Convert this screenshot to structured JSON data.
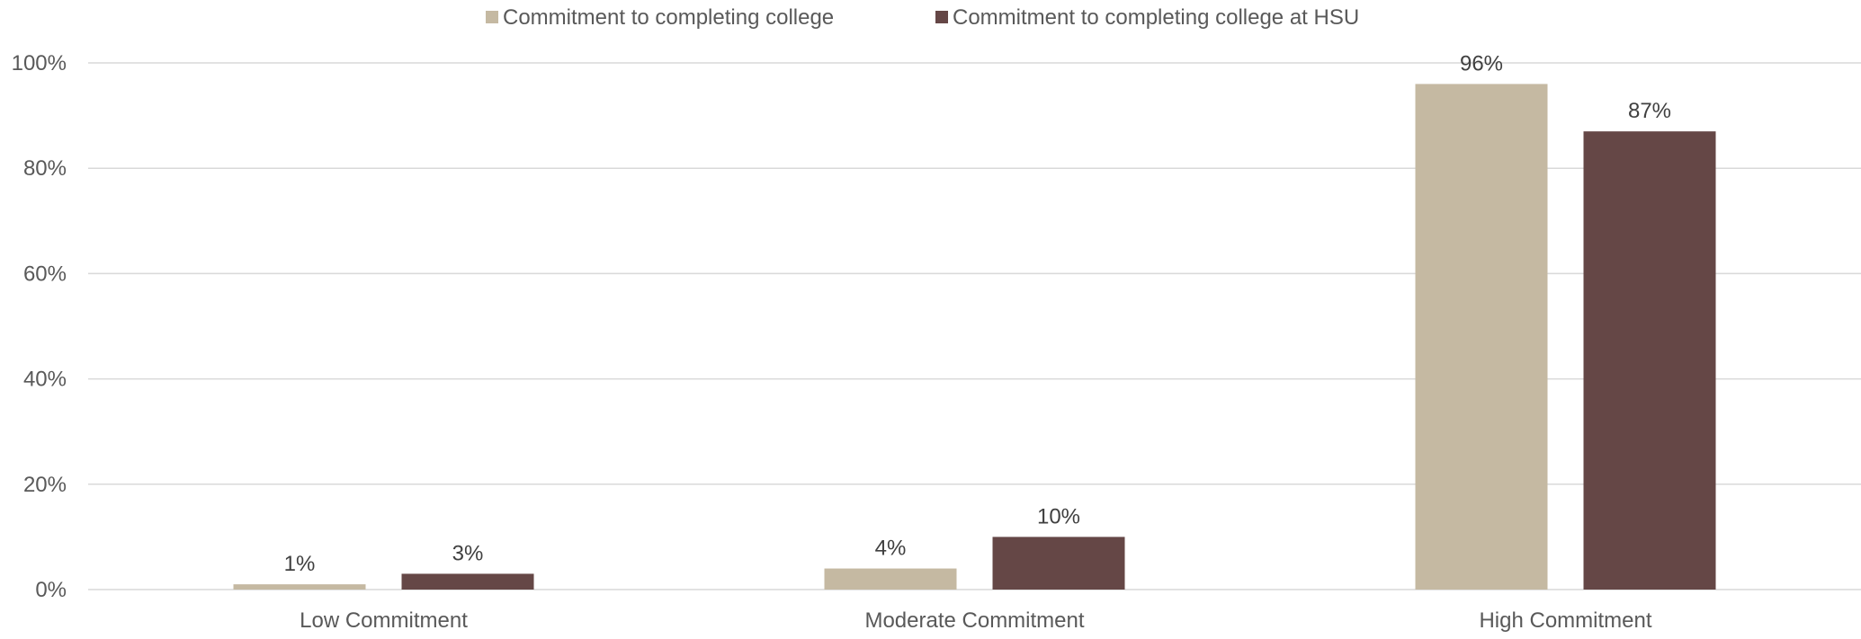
{
  "chart_data": {
    "type": "bar",
    "categories": [
      "Low Commitment",
      "Moderate Commitment",
      "High Commitment"
    ],
    "series": [
      {
        "name": "Commitment to completing college",
        "values": [
          1,
          4,
          96
        ],
        "labels": [
          "1%",
          "4%",
          "96%"
        ],
        "color": "#c5b9a2"
      },
      {
        "name": "Commitment to completing college at HSU",
        "values": [
          3,
          10,
          87
        ],
        "labels": [
          "3%",
          "10%",
          "87%"
        ],
        "color": "#654746"
      }
    ],
    "yticks": [
      0,
      20,
      40,
      60,
      80,
      100
    ],
    "ytick_labels": [
      "0%",
      "20%",
      "40%",
      "60%",
      "80%",
      "100%"
    ],
    "ylim": [
      0,
      100
    ],
    "grid": true,
    "legend_position": "top-center",
    "colors": {
      "gridline": "#d9d9d9",
      "text": "#595959",
      "data_label": "#404040"
    }
  }
}
